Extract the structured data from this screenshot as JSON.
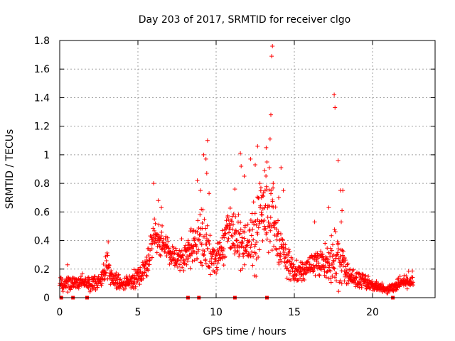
{
  "chart_data": {
    "type": "scatter",
    "title": "Day 203 of 2017, SRMTID for receiver clgo",
    "xlabel": "GPS time / hours",
    "ylabel": "SRMTID / TECUs",
    "xlim": [
      0,
      24
    ],
    "ylim": [
      0,
      1.8
    ],
    "grid": true,
    "marker": "+",
    "x_ticks": [
      "0",
      "5",
      "10",
      "15",
      "20"
    ],
    "x_tick_values": [
      0,
      5,
      10,
      15,
      20
    ],
    "y_ticks": [
      "0",
      "0.2",
      "0.4",
      "0.6",
      "0.8",
      "1",
      "1.2",
      "1.4",
      "1.6",
      "1.8"
    ],
    "y_tick_values": [
      0,
      0.2,
      0.4,
      0.6,
      0.8,
      1.0,
      1.2,
      1.4,
      1.6,
      1.8
    ],
    "series": [
      {
        "name": "SRMTID",
        "color": "#ff0000",
        "envelope": [
          [
            0.0,
            0.1,
            0.05
          ],
          [
            1.0,
            0.11,
            0.05
          ],
          [
            2.0,
            0.1,
            0.05
          ],
          [
            2.6,
            0.11,
            0.05
          ],
          [
            3.0,
            0.22,
            0.09
          ],
          [
            3.4,
            0.12,
            0.05
          ],
          [
            4.0,
            0.1,
            0.05
          ],
          [
            5.0,
            0.14,
            0.06
          ],
          [
            5.6,
            0.22,
            0.07
          ],
          [
            6.0,
            0.45,
            0.12
          ],
          [
            6.5,
            0.4,
            0.1
          ],
          [
            7.0,
            0.32,
            0.08
          ],
          [
            7.5,
            0.28,
            0.08
          ],
          [
            8.0,
            0.3,
            0.1
          ],
          [
            8.6,
            0.38,
            0.15
          ],
          [
            9.0,
            0.45,
            0.2
          ],
          [
            9.4,
            0.35,
            0.18
          ],
          [
            9.8,
            0.25,
            0.12
          ],
          [
            10.2,
            0.3,
            0.12
          ],
          [
            10.8,
            0.5,
            0.15
          ],
          [
            11.3,
            0.42,
            0.15
          ],
          [
            12.0,
            0.35,
            0.15
          ],
          [
            12.5,
            0.45,
            0.22
          ],
          [
            13.0,
            0.55,
            0.25
          ],
          [
            13.5,
            0.58,
            0.25
          ],
          [
            14.0,
            0.4,
            0.15
          ],
          [
            14.5,
            0.25,
            0.1
          ],
          [
            15.0,
            0.18,
            0.07
          ],
          [
            15.5,
            0.18,
            0.07
          ],
          [
            16.0,
            0.22,
            0.09
          ],
          [
            16.5,
            0.25,
            0.1
          ],
          [
            17.0,
            0.25,
            0.12
          ],
          [
            17.5,
            0.28,
            0.15
          ],
          [
            18.0,
            0.25,
            0.15
          ],
          [
            18.5,
            0.15,
            0.07
          ],
          [
            19.0,
            0.12,
            0.05
          ],
          [
            19.5,
            0.11,
            0.05
          ],
          [
            20.0,
            0.09,
            0.04
          ],
          [
            20.5,
            0.07,
            0.03
          ],
          [
            21.0,
            0.06,
            0.03
          ],
          [
            21.5,
            0.08,
            0.04
          ],
          [
            22.0,
            0.11,
            0.05
          ],
          [
            22.6,
            0.13,
            0.06
          ]
        ],
        "outliers": [
          [
            0.5,
            0.23
          ],
          [
            3.1,
            0.39
          ],
          [
            6.0,
            0.8
          ],
          [
            6.3,
            0.68
          ],
          [
            6.5,
            0.63
          ],
          [
            8.8,
            0.82
          ],
          [
            9.0,
            0.75
          ],
          [
            9.2,
            1.0
          ],
          [
            9.35,
            0.97
          ],
          [
            9.4,
            0.87
          ],
          [
            9.45,
            1.1
          ],
          [
            9.55,
            0.73
          ],
          [
            11.2,
            0.76
          ],
          [
            11.55,
            1.01
          ],
          [
            11.6,
            0.92
          ],
          [
            11.8,
            0.85
          ],
          [
            12.2,
            0.97
          ],
          [
            12.5,
            0.93
          ],
          [
            12.65,
            1.06
          ],
          [
            12.8,
            0.8
          ],
          [
            12.9,
            0.7
          ],
          [
            13.1,
            0.89
          ],
          [
            13.2,
            1.05
          ],
          [
            13.25,
            0.95
          ],
          [
            13.4,
            0.91
          ],
          [
            13.45,
            1.11
          ],
          [
            13.5,
            1.28
          ],
          [
            13.55,
            1.69
          ],
          [
            13.6,
            1.76
          ],
          [
            13.65,
            0.8
          ],
          [
            14.0,
            0.7
          ],
          [
            14.15,
            0.91
          ],
          [
            14.3,
            0.75
          ],
          [
            17.2,
            0.63
          ],
          [
            17.55,
            1.42
          ],
          [
            17.6,
            1.33
          ],
          [
            17.8,
            0.96
          ],
          [
            17.95,
            0.75
          ],
          [
            18.05,
            0.61
          ],
          [
            18.1,
            0.75
          ],
          [
            18.0,
            0.53
          ],
          [
            16.3,
            0.53
          ]
        ],
        "zero_markers": [
          0.1,
          0.85,
          1.75,
          8.2,
          8.9,
          11.2,
          13.25,
          21.3
        ]
      }
    ]
  }
}
